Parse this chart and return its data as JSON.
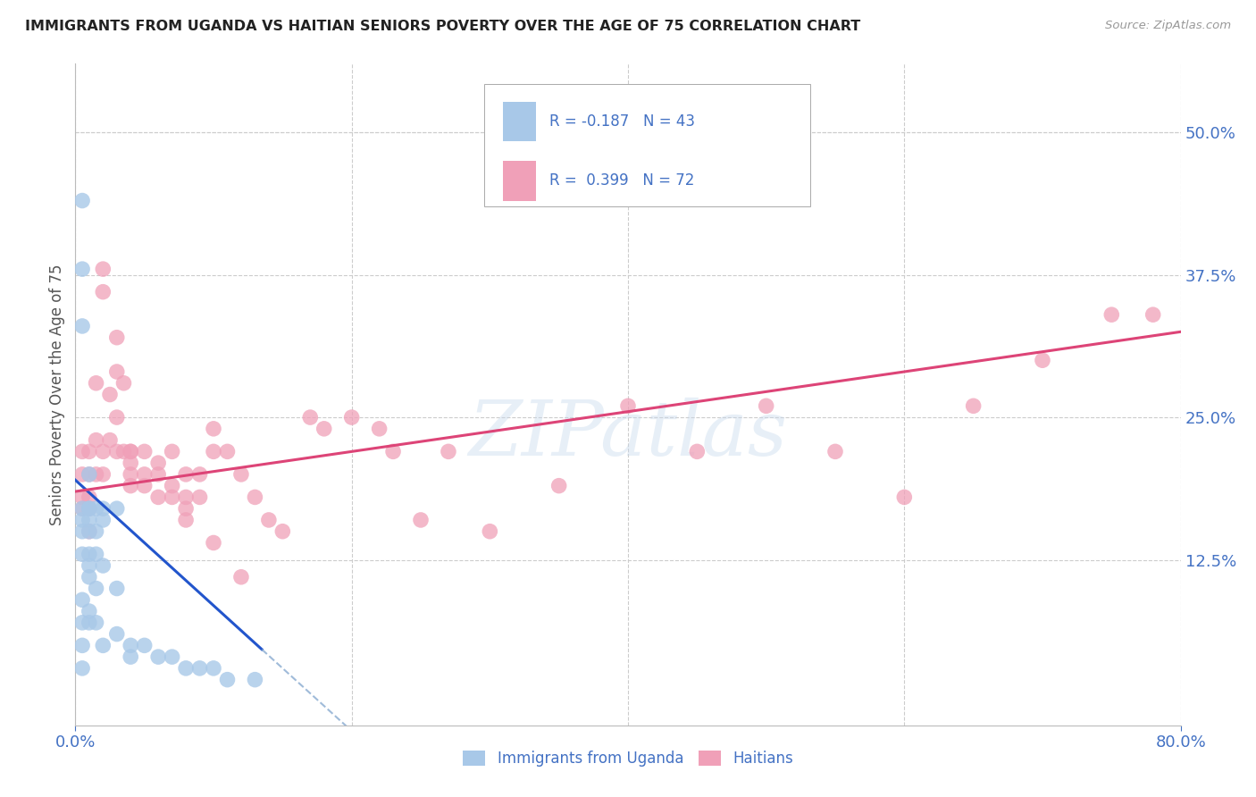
{
  "title": "IMMIGRANTS FROM UGANDA VS HAITIAN SENIORS POVERTY OVER THE AGE OF 75 CORRELATION CHART",
  "source": "Source: ZipAtlas.com",
  "ylabel": "Seniors Poverty Over the Age of 75",
  "ytick_values": [
    0.125,
    0.25,
    0.375,
    0.5
  ],
  "ytick_labels": [
    "12.5%",
    "25.0%",
    "37.5%",
    "50.0%"
  ],
  "xlim": [
    0.0,
    0.8
  ],
  "ylim": [
    -0.02,
    0.56
  ],
  "color_uganda": "#a8c8e8",
  "color_haitian": "#f0a0b8",
  "line_color_uganda": "#2255cc",
  "line_color_haitian": "#dd4477",
  "line_color_uganda_dashed": "#88aad0",
  "watermark": "ZIPatlas",
  "background_color": "#ffffff",
  "grid_color": "#cccccc",
  "title_color": "#222222",
  "axis_label_color": "#4472c4",
  "uganda_x": [
    0.005,
    0.005,
    0.005,
    0.005,
    0.005,
    0.005,
    0.01,
    0.01,
    0.01,
    0.01,
    0.01,
    0.01,
    0.01,
    0.01,
    0.01,
    0.01,
    0.015,
    0.015,
    0.015,
    0.015,
    0.015,
    0.02,
    0.02,
    0.02,
    0.02,
    0.03,
    0.03,
    0.03,
    0.04,
    0.04,
    0.05,
    0.06,
    0.07,
    0.08,
    0.09,
    0.1,
    0.11,
    0.13,
    0.005,
    0.005,
    0.005,
    0.005,
    0.005
  ],
  "uganda_y": [
    0.17,
    0.15,
    0.16,
    0.13,
    0.09,
    0.07,
    0.2,
    0.17,
    0.17,
    0.16,
    0.15,
    0.13,
    0.12,
    0.11,
    0.08,
    0.07,
    0.17,
    0.15,
    0.13,
    0.1,
    0.07,
    0.17,
    0.16,
    0.12,
    0.05,
    0.17,
    0.1,
    0.06,
    0.05,
    0.04,
    0.05,
    0.04,
    0.04,
    0.03,
    0.03,
    0.03,
    0.02,
    0.02,
    0.44,
    0.38,
    0.33,
    0.05,
    0.03
  ],
  "haitian_x": [
    0.005,
    0.005,
    0.005,
    0.005,
    0.01,
    0.01,
    0.01,
    0.01,
    0.01,
    0.015,
    0.015,
    0.015,
    0.02,
    0.02,
    0.02,
    0.02,
    0.025,
    0.025,
    0.03,
    0.03,
    0.03,
    0.035,
    0.035,
    0.04,
    0.04,
    0.04,
    0.04,
    0.05,
    0.05,
    0.05,
    0.06,
    0.06,
    0.06,
    0.07,
    0.07,
    0.07,
    0.08,
    0.08,
    0.08,
    0.09,
    0.09,
    0.1,
    0.1,
    0.11,
    0.12,
    0.13,
    0.14,
    0.15,
    0.17,
    0.18,
    0.2,
    0.22,
    0.23,
    0.25,
    0.27,
    0.3,
    0.35,
    0.4,
    0.45,
    0.5,
    0.55,
    0.6,
    0.65,
    0.7,
    0.75,
    0.78,
    0.03,
    0.04,
    0.08,
    0.1,
    0.12
  ],
  "haitian_y": [
    0.22,
    0.2,
    0.18,
    0.17,
    0.22,
    0.2,
    0.18,
    0.17,
    0.15,
    0.28,
    0.23,
    0.2,
    0.38,
    0.36,
    0.22,
    0.2,
    0.27,
    0.23,
    0.29,
    0.25,
    0.22,
    0.28,
    0.22,
    0.22,
    0.22,
    0.2,
    0.19,
    0.22,
    0.2,
    0.19,
    0.21,
    0.2,
    0.18,
    0.22,
    0.19,
    0.18,
    0.2,
    0.18,
    0.17,
    0.2,
    0.18,
    0.24,
    0.22,
    0.22,
    0.2,
    0.18,
    0.16,
    0.15,
    0.25,
    0.24,
    0.25,
    0.24,
    0.22,
    0.16,
    0.22,
    0.15,
    0.19,
    0.26,
    0.22,
    0.26,
    0.22,
    0.18,
    0.26,
    0.3,
    0.34,
    0.34,
    0.32,
    0.21,
    0.16,
    0.14,
    0.11
  ],
  "uganda_line_x0": 0.0,
  "uganda_line_x1": 0.135,
  "uganda_line_xd1": 0.135,
  "uganda_line_xd2": 0.45,
  "uganda_line_y_intercept": 0.195,
  "uganda_line_slope": -1.1,
  "haitian_line_x0": 0.0,
  "haitian_line_x1": 0.8,
  "haitian_line_y_intercept": 0.185,
  "haitian_line_slope": 0.175
}
